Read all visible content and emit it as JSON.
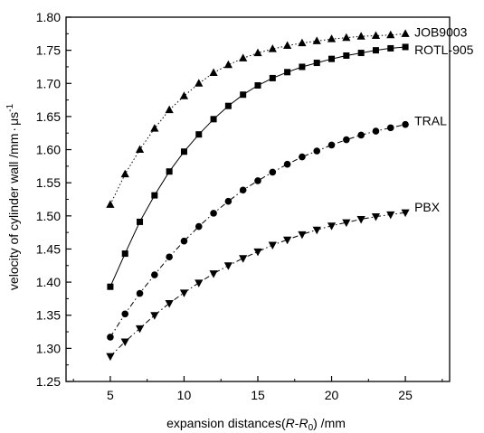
{
  "chart_data": {
    "type": "line",
    "xlabel_parts": [
      "expansion distances(",
      "R",
      "-",
      "R",
      "0",
      ") /mm"
    ],
    "ylabel_parts": [
      "velocity of cylinder wall /mm",
      "·",
      "μs",
      "-1"
    ],
    "xlim": [
      2,
      28
    ],
    "ylim": [
      1.25,
      1.8
    ],
    "xticks": [
      5,
      10,
      15,
      20,
      25
    ],
    "yticks": [
      1.25,
      1.3,
      1.35,
      1.4,
      1.45,
      1.5,
      1.55,
      1.6,
      1.65,
      1.7,
      1.75,
      1.8
    ],
    "x": [
      5,
      6,
      7,
      8,
      9,
      10,
      11,
      12,
      13,
      14,
      15,
      16,
      17,
      18,
      19,
      20,
      21,
      22,
      23,
      24,
      25
    ],
    "series": [
      {
        "name": "JOB9003",
        "marker": "triangle-up",
        "line_style": "dotted",
        "values": [
          1.517,
          1.563,
          1.6,
          1.632,
          1.66,
          1.681,
          1.7,
          1.716,
          1.728,
          1.738,
          1.746,
          1.752,
          1.757,
          1.761,
          1.764,
          1.767,
          1.769,
          1.771,
          1.772,
          1.773,
          1.775
        ]
      },
      {
        "name": "ROTL-905",
        "marker": "square",
        "line_style": "solid",
        "values": [
          1.393,
          1.443,
          1.491,
          1.531,
          1.567,
          1.597,
          1.623,
          1.646,
          1.666,
          1.683,
          1.697,
          1.708,
          1.717,
          1.725,
          1.731,
          1.737,
          1.742,
          1.746,
          1.75,
          1.753,
          1.755
        ]
      },
      {
        "name": "TRAL",
        "marker": "circle",
        "line_style": "dashdot",
        "values": [
          1.317,
          1.352,
          1.383,
          1.411,
          1.438,
          1.462,
          1.484,
          1.504,
          1.522,
          1.539,
          1.553,
          1.566,
          1.578,
          1.589,
          1.598,
          1.607,
          1.615,
          1.622,
          1.628,
          1.633,
          1.638
        ]
      },
      {
        "name": "PBX",
        "marker": "triangle-down",
        "line_style": "dashdot",
        "values": [
          1.288,
          1.31,
          1.33,
          1.35,
          1.368,
          1.384,
          1.399,
          1.413,
          1.425,
          1.436,
          1.446,
          1.456,
          1.464,
          1.472,
          1.479,
          1.485,
          1.49,
          1.495,
          1.499,
          1.502,
          1.505
        ]
      }
    ],
    "grid": false,
    "legend": "inline labels at line ends"
  }
}
